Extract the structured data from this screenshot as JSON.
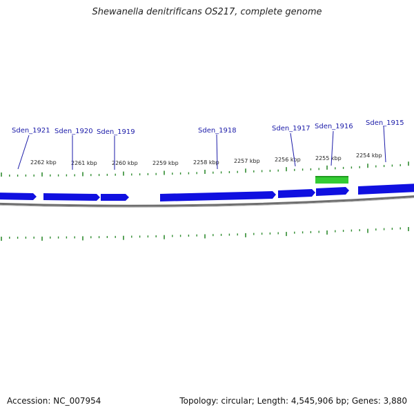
{
  "title": "Shewanella denitrificans OS217, complete genome",
  "footer": {
    "accession": "Accession: NC_007954",
    "summary": "Topology: circular; Length: 4,545,906 bp; Genes: 3,880"
  },
  "colors": {
    "gene_forward": "#1010e0",
    "gene_highlight": "#33cc33",
    "backbone": "#808080",
    "tick": "#2e8b2e",
    "gene_label": "#1a1aa8"
  },
  "genes": [
    {
      "label": "Sden_1921",
      "strand": "-"
    },
    {
      "label": "Sden_1920",
      "strand": "-"
    },
    {
      "label": "Sden_1919",
      "strand": "-"
    },
    {
      "label": "Sden_1918",
      "strand": "-"
    },
    {
      "label": "Sden_1917",
      "strand": "-"
    },
    {
      "label": "Sden_1916",
      "strand": "-"
    },
    {
      "label": "Sden_1915",
      "strand": "-"
    }
  ],
  "scale_labels": [
    "2262 kbp",
    "2261 kbp",
    "2260 kbp",
    "2259 kbp",
    "2258 kbp",
    "2257 kbp",
    "2256 kbp",
    "2255 kbp",
    "2254 kbp"
  ]
}
